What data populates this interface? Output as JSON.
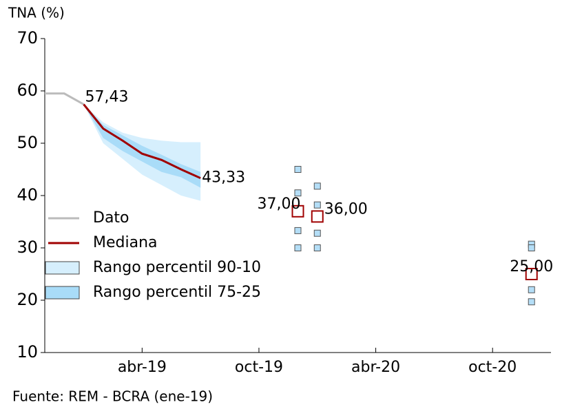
{
  "chart_data": {
    "type": "line",
    "y_label": "TNA (%)",
    "source": "Fuente: REM - BCRA (ene-19)",
    "xlim": [
      "2018-11",
      "2021-01"
    ],
    "xticks": [
      {
        "value": "2019-04",
        "label": "abr-19"
      },
      {
        "value": "2019-10",
        "label": "oct-19"
      },
      {
        "value": "2020-04",
        "label": "abr-20"
      },
      {
        "value": "2020-10",
        "label": "oct-20"
      }
    ],
    "ylim": [
      10,
      70
    ],
    "yticks": [
      10,
      20,
      30,
      40,
      50,
      60,
      70
    ],
    "series": [
      {
        "name": "Dato",
        "color": "#bbbbbb",
        "x": [
          "2018-11",
          "2018-12",
          "2019-01"
        ],
        "values": [
          59.5,
          59.5,
          57.43
        ]
      },
      {
        "name": "Mediana",
        "color": "#a00000",
        "x": [
          "2019-01",
          "2019-02",
          "2019-03",
          "2019-04",
          "2019-05",
          "2019-06",
          "2019-07"
        ],
        "values": [
          57.43,
          52.8,
          50.5,
          48,
          46.8,
          45,
          43.33
        ],
        "value_labels": [
          "57,43",
          null,
          null,
          null,
          null,
          null,
          "43,33"
        ]
      }
    ],
    "bands": [
      {
        "name": "Rango percentil 90-10",
        "color": "#d6effd",
        "x": [
          "2019-01",
          "2019-02",
          "2019-03",
          "2019-04",
          "2019-05",
          "2019-06",
          "2019-07"
        ],
        "upper": [
          57.43,
          54,
          52,
          51,
          50.5,
          50.2,
          50.2
        ],
        "lower": [
          57.43,
          50,
          47,
          44,
          42,
          40,
          39
        ]
      },
      {
        "name": "Rango percentil 75-25",
        "color": "#a9dcf8",
        "x": [
          "2019-01",
          "2019-02",
          "2019-03",
          "2019-04",
          "2019-05",
          "2019-06",
          "2019-07"
        ],
        "upper": [
          57.43,
          53.5,
          51.5,
          49.5,
          47.8,
          46,
          44.5
        ],
        "lower": [
          57.43,
          51,
          48.5,
          46.5,
          44.5,
          43.5,
          41.5
        ]
      }
    ],
    "points": {
      "x": [
        "2019-12",
        "2020-01",
        "2020-12"
      ],
      "median": [
        37,
        36,
        25
      ],
      "median_labels": [
        "37,00",
        "36,00",
        "25,00"
      ],
      "p90": [
        45,
        41.8,
        30.7
      ],
      "p75": [
        40.5,
        38.2,
        30
      ],
      "p25": [
        33.3,
        32.8,
        22
      ],
      "p10": [
        30,
        30,
        19.7
      ]
    }
  }
}
